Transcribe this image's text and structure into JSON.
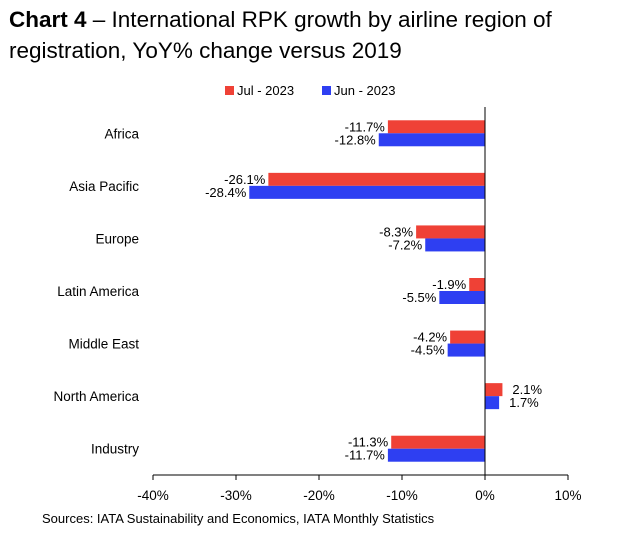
{
  "title_lead": "Chart 4",
  "title_rest": " – International RPK growth by airline region of registration, YoY% change versus 2019",
  "source": "Sources: IATA Sustainability and Economics, IATA Monthly Statistics",
  "colors": {
    "jul": "#ef4136",
    "jun": "#2e3ff2"
  },
  "chart_data": {
    "type": "bar",
    "orientation": "horizontal",
    "title": "Chart 4 – International RPK growth by airline region of registration, YoY% change versus 2019",
    "categories": [
      "Africa",
      "Asia Pacific",
      "Europe",
      "Latin America",
      "Middle East",
      "North America",
      "Industry"
    ],
    "series": [
      {
        "name": "Jul - 2023",
        "color": "#ef4136",
        "values": [
          -11.7,
          -26.1,
          -8.3,
          -1.9,
          -4.2,
          2.1,
          -11.3
        ],
        "labels": [
          "-11.7%",
          "-26.1%",
          "-8.3%",
          "-1.9%",
          "-4.2%",
          "2.1%",
          "-11.3%"
        ]
      },
      {
        "name": "Jun - 2023",
        "color": "#2e3ff2",
        "values": [
          -12.8,
          -28.4,
          -7.2,
          -5.5,
          -4.5,
          1.7,
          -11.7
        ],
        "labels": [
          "-12.8%",
          "-28.4%",
          "-7.2%",
          "-5.5%",
          "-4.5%",
          "1.7%",
          "-11.7%"
        ]
      }
    ],
    "xlim": [
      -40,
      10
    ],
    "xticks": [
      -40,
      -30,
      -20,
      -10,
      0,
      10
    ],
    "xtick_labels": [
      "-40%",
      "-30%",
      "-20%",
      "-10%",
      "0%",
      "10%"
    ],
    "legend": "top",
    "grid": false
  }
}
